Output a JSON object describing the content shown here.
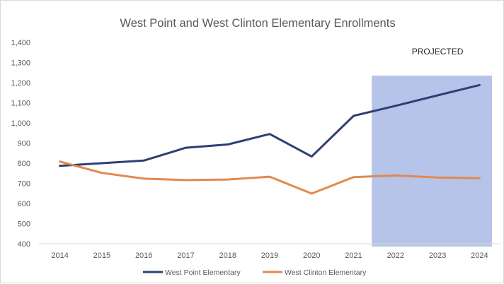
{
  "chart_data": {
    "type": "line",
    "title": "West Point and West Clinton Elementary Enrollments",
    "xlabel": "",
    "ylabel": "",
    "x": [
      "2014",
      "2015",
      "2016",
      "2017",
      "2018",
      "2019",
      "2020",
      "2021",
      "2022",
      "2023",
      "2024"
    ],
    "ylim": [
      400,
      1400
    ],
    "yticks": [
      400,
      500,
      600,
      700,
      800,
      900,
      1000,
      1100,
      1200,
      1300,
      1400
    ],
    "ytick_labels": [
      "400",
      "500",
      "600",
      "700",
      "800",
      "900",
      "1,000",
      "1,100",
      "1,200",
      "1,300",
      "1,400"
    ],
    "grid": false,
    "legend_position": "bottom",
    "series": [
      {
        "name": "West Point Elementary",
        "color": "#2e3f74",
        "values": [
          787,
          800,
          813,
          877,
          893,
          945,
          833,
          1035,
          1085,
          1137,
          1188
        ]
      },
      {
        "name": "West Clinton Elementary",
        "color": "#e08a4f",
        "values": [
          808,
          752,
          723,
          716,
          719,
          733,
          649,
          731,
          739,
          729,
          725
        ]
      }
    ],
    "annotations": [
      {
        "label": "PROJECTED",
        "x_start": "2022",
        "x_end": "2024",
        "shade_color": "#b7c4e9"
      }
    ]
  }
}
